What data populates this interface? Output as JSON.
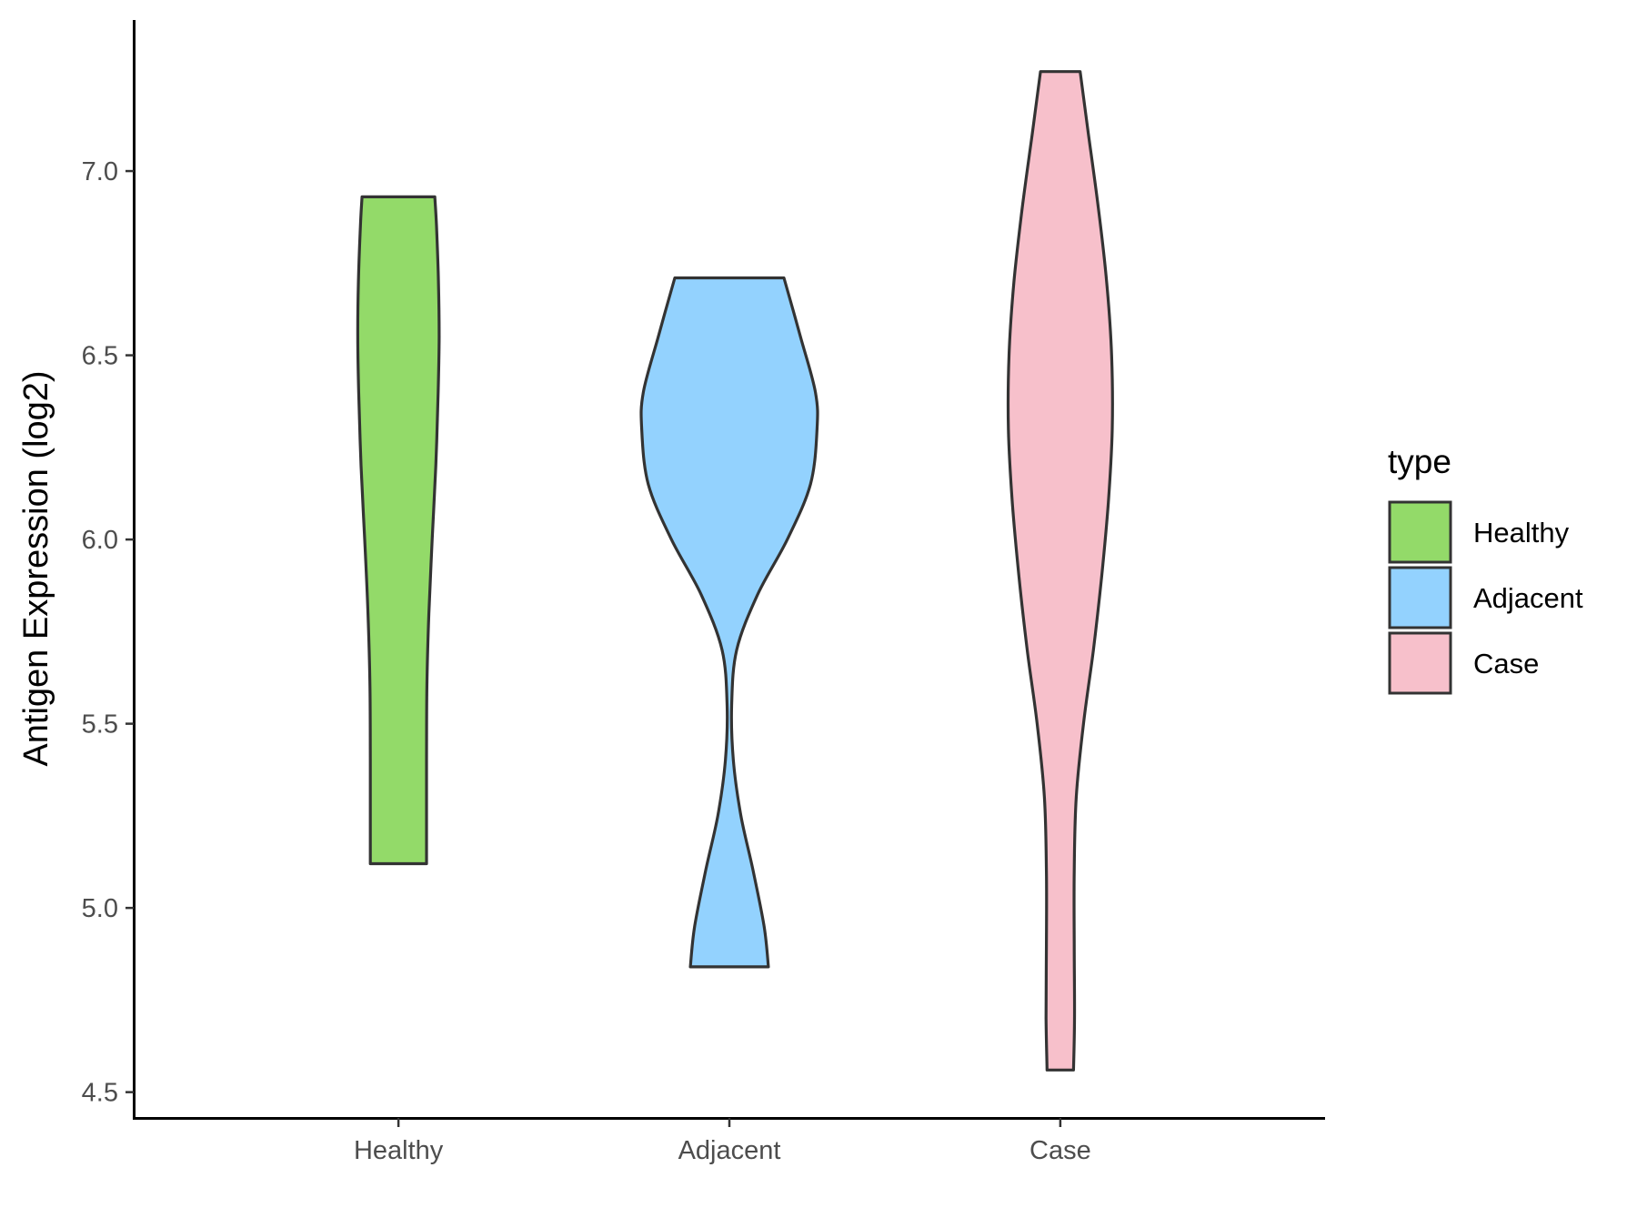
{
  "chart_data": {
    "type": "violin",
    "ylabel": "Antigen Expression (log2)",
    "ylim": [
      4.43,
      7.41
    ],
    "yticks": [
      "4.5",
      "5.0",
      "5.5",
      "6.0",
      "6.5",
      "7.0"
    ],
    "categories": [
      "Healthy",
      "Adjacent",
      "Case"
    ],
    "grid": false,
    "legend": {
      "title": "type",
      "position": "right",
      "entries": [
        "Healthy",
        "Adjacent",
        "Case"
      ]
    },
    "series": [
      {
        "name": "Healthy",
        "color": "#93da69",
        "min": 5.12,
        "max": 6.93,
        "density_profile": [
          {
            "y": 5.12,
            "half_width": 0.085
          },
          {
            "y": 5.4,
            "half_width": 0.085
          },
          {
            "y": 5.6,
            "half_width": 0.086
          },
          {
            "y": 5.8,
            "half_width": 0.092
          },
          {
            "y": 6.0,
            "half_width": 0.102
          },
          {
            "y": 6.2,
            "half_width": 0.113
          },
          {
            "y": 6.4,
            "half_width": 0.12
          },
          {
            "y": 6.55,
            "half_width": 0.123
          },
          {
            "y": 6.7,
            "half_width": 0.121
          },
          {
            "y": 6.85,
            "half_width": 0.115
          },
          {
            "y": 6.93,
            "half_width": 0.11
          }
        ]
      },
      {
        "name": "Adjacent",
        "color": "#93d2fe",
        "min": 4.84,
        "max": 6.71,
        "density_profile": [
          {
            "y": 4.84,
            "half_width": 0.118
          },
          {
            "y": 4.95,
            "half_width": 0.105
          },
          {
            "y": 5.1,
            "half_width": 0.072
          },
          {
            "y": 5.25,
            "half_width": 0.035
          },
          {
            "y": 5.4,
            "half_width": 0.012
          },
          {
            "y": 5.55,
            "half_width": 0.007
          },
          {
            "y": 5.7,
            "half_width": 0.022
          },
          {
            "y": 5.85,
            "half_width": 0.085
          },
          {
            "y": 6.0,
            "half_width": 0.175
          },
          {
            "y": 6.15,
            "half_width": 0.245
          },
          {
            "y": 6.3,
            "half_width": 0.265
          },
          {
            "y": 6.4,
            "half_width": 0.26
          },
          {
            "y": 6.55,
            "half_width": 0.215
          },
          {
            "y": 6.71,
            "half_width": 0.165
          }
        ]
      },
      {
        "name": "Case",
        "color": "#f7c0cb",
        "min": 4.56,
        "max": 7.27,
        "density_profile": [
          {
            "y": 4.56,
            "half_width": 0.04
          },
          {
            "y": 4.7,
            "half_width": 0.043
          },
          {
            "y": 4.9,
            "half_width": 0.042
          },
          {
            "y": 5.1,
            "half_width": 0.042
          },
          {
            "y": 5.3,
            "half_width": 0.048
          },
          {
            "y": 5.5,
            "half_width": 0.07
          },
          {
            "y": 5.7,
            "half_width": 0.1
          },
          {
            "y": 5.9,
            "half_width": 0.125
          },
          {
            "y": 6.1,
            "half_width": 0.145
          },
          {
            "y": 6.3,
            "half_width": 0.157
          },
          {
            "y": 6.5,
            "half_width": 0.155
          },
          {
            "y": 6.7,
            "half_width": 0.14
          },
          {
            "y": 6.9,
            "half_width": 0.115
          },
          {
            "y": 7.1,
            "half_width": 0.085
          },
          {
            "y": 7.27,
            "half_width": 0.06
          }
        ]
      }
    ]
  }
}
